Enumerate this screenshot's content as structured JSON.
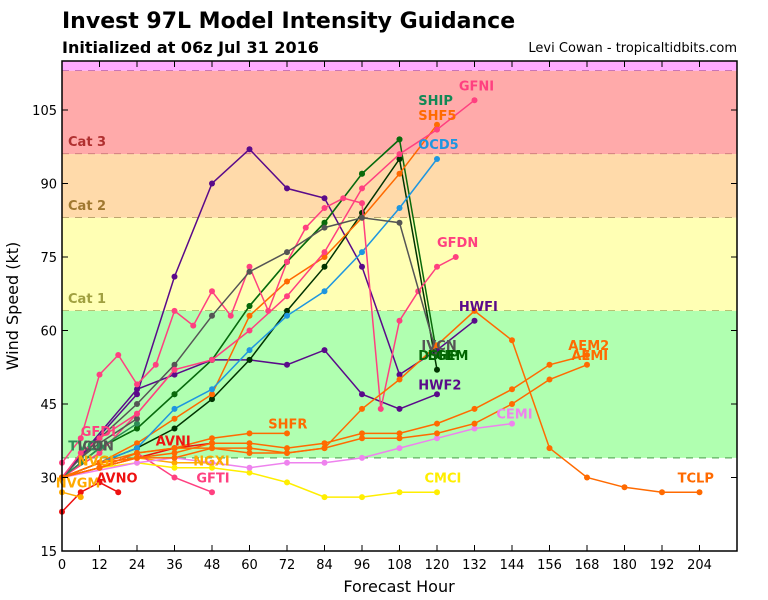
{
  "header": {
    "title": "Invest 97L Model Intensity Guidance",
    "subtitle": "Initialized at 06z Jul 31 2016",
    "credit": "Levi Cowan - tropicaltidbits.com"
  },
  "chart_data": {
    "type": "line",
    "title": "Invest 97L Model Intensity Guidance",
    "subtitle": "Initialized at 06z Jul 31 2016",
    "xlabel": "Forecast Hour",
    "ylabel": "Wind Speed (kt)",
    "xlim": [
      0,
      216
    ],
    "ylim": [
      15,
      115
    ],
    "xticks": [
      0,
      12,
      24,
      36,
      48,
      60,
      72,
      84,
      96,
      108,
      120,
      132,
      144,
      156,
      168,
      180,
      192,
      204
    ],
    "yticks": [
      15,
      30,
      45,
      60,
      75,
      90,
      105
    ],
    "grid": false,
    "bands": [
      {
        "name": "Cat 4",
        "from": 113,
        "to": 115,
        "color": "#ffaaff",
        "line_color": "#b05ab0"
      },
      {
        "name": "Cat 3",
        "from": 96,
        "to": 113,
        "color": "#ffaaaa",
        "label": "Cat 3",
        "label_color": "#b03030",
        "line_color": "#b06060"
      },
      {
        "name": "Cat 2",
        "from": 83,
        "to": 96,
        "color": "#ffdaaa",
        "label": "Cat 2",
        "label_color": "#a07830",
        "line_color": "#a08050"
      },
      {
        "name": "Cat 1",
        "from": 64,
        "to": 83,
        "color": "#ffffb4",
        "label": "Cat 1",
        "label_color": "#a0a040",
        "line_color": "#a0a050"
      },
      {
        "name": "TS",
        "from": 34,
        "to": 64,
        "color": "#b0ffb0",
        "line_color": "#60b060"
      }
    ],
    "series": [
      {
        "name": "HWFI",
        "color": "#5a0a8a",
        "x": [
          0,
          24,
          36,
          48,
          60,
          72,
          84,
          96,
          108,
          120,
          132
        ],
        "y": [
          30,
          47,
          71,
          90,
          97,
          89,
          87,
          73,
          51,
          56,
          62
        ]
      },
      {
        "name": "HWF2",
        "color": "#5a0a8a",
        "x": [
          0,
          24,
          36,
          48,
          60,
          72,
          84,
          96,
          108,
          120
        ],
        "y": [
          30,
          48,
          51,
          54,
          54,
          53,
          56,
          47,
          44,
          47
        ]
      },
      {
        "name": "SHIP",
        "color": "#118855",
        "x": [
          0,
          12,
          24,
          36,
          48,
          60,
          72,
          84,
          96,
          108
        ],
        "y": [
          30,
          36,
          40,
          47,
          54,
          65,
          74,
          82,
          92,
          99
        ]
      },
      {
        "name": "DSHP",
        "color": "#0a6a0a",
        "x": [
          0,
          12,
          24,
          36,
          48,
          60,
          72,
          84,
          96,
          108,
          120
        ],
        "y": [
          30,
          36,
          40,
          47,
          54,
          65,
          74,
          82,
          92,
          99,
          55
        ]
      },
      {
        "name": "LGEM",
        "color": "#003300",
        "x": [
          0,
          12,
          24,
          36,
          48,
          60,
          72,
          84,
          96,
          108,
          120
        ],
        "y": [
          30,
          33,
          36,
          40,
          46,
          54,
          64,
          73,
          84,
          95,
          52
        ]
      },
      {
        "name": "SHF5",
        "color": "#ff6a00",
        "x": [
          0,
          12,
          24,
          36,
          48,
          60,
          72,
          84,
          96,
          108,
          120
        ],
        "y": [
          30,
          33,
          37,
          42,
          47,
          63,
          70,
          75,
          83,
          92,
          102
        ]
      },
      {
        "name": "OCD5",
        "color": "#1e96e0",
        "x": [
          0,
          12,
          24,
          36,
          48,
          60,
          72,
          84,
          96,
          108,
          120
        ],
        "y": [
          30,
          33,
          36,
          44,
          48,
          56,
          63,
          68,
          76,
          85,
          95
        ]
      },
      {
        "name": "GFNI",
        "color": "#ff4080",
        "x": [
          0,
          12,
          24,
          36,
          48,
          60,
          72,
          84,
          96,
          108,
          120,
          132
        ],
        "y": [
          30,
          35,
          43,
          52,
          54,
          60,
          67,
          76,
          89,
          96,
          101,
          107
        ]
      },
      {
        "name": "GFDN",
        "color": "#ff4080",
        "x": [
          0,
          6,
          12,
          18,
          24,
          30,
          36,
          42,
          48,
          54,
          60,
          66,
          72,
          78,
          84,
          90,
          96,
          102,
          108,
          114,
          120,
          126
        ],
        "y": [
          33,
          38,
          51,
          55,
          49,
          53,
          64,
          61,
          68,
          63,
          73,
          64,
          74,
          81,
          85,
          87,
          86,
          44,
          62,
          68,
          73,
          75
        ]
      },
      {
        "name": "IVCN",
        "color": "#555555",
        "x": [
          0,
          12,
          24,
          36,
          48,
          60,
          72,
          84,
          96,
          108,
          120
        ],
        "y": [
          30,
          38,
          45,
          53,
          63,
          72,
          76,
          81,
          83,
          82,
          55
        ]
      },
      {
        "name": "TVCN",
        "color": "#2e8b57",
        "x": [
          0,
          6,
          12,
          24
        ],
        "y": [
          30,
          33,
          36,
          41
        ]
      },
      {
        "name": "ICON",
        "color": "#555555",
        "x": [
          0,
          6,
          12,
          24
        ],
        "y": [
          30,
          34,
          37,
          42
        ]
      },
      {
        "name": "GFDI",
        "color": "#ff4080",
        "x": [
          0,
          6,
          12,
          24,
          36
        ],
        "y": [
          30,
          35,
          38,
          43,
          52
        ]
      },
      {
        "name": "AVNO",
        "color": "#ee1111",
        "x": [
          0,
          6,
          12,
          18
        ],
        "y": [
          23,
          27,
          29,
          27
        ]
      },
      {
        "name": "AVNI",
        "color": "#ee1111",
        "x": [
          0,
          12,
          24,
          36,
          48
        ],
        "y": [
          30,
          32,
          34,
          36,
          37
        ]
      },
      {
        "name": "NVGM",
        "color": "#ffaa00",
        "x": [
          0,
          6
        ],
        "y": [
          27,
          26
        ]
      },
      {
        "name": "NVGI",
        "color": "#ffaa00",
        "x": [
          0,
          12,
          24
        ],
        "y": [
          30,
          33,
          34
        ]
      },
      {
        "name": "NGXI",
        "color": "#ffaa00",
        "x": [
          0,
          12,
          24,
          36,
          48
        ],
        "y": [
          30,
          32,
          34,
          33,
          33
        ]
      },
      {
        "name": "GFTI",
        "color": "#ff4080",
        "x": [
          0,
          12,
          24,
          36,
          48
        ],
        "y": [
          30,
          32,
          35,
          30,
          27
        ]
      },
      {
        "name": "SHFR",
        "color": "#ff6a00",
        "x": [
          0,
          12,
          24,
          36,
          48,
          60,
          72
        ],
        "y": [
          30,
          33,
          35,
          36,
          38,
          39,
          39
        ]
      },
      {
        "name": "CMCI",
        "color": "#ffee00",
        "x": [
          0,
          12,
          24,
          36,
          48,
          60,
          72,
          84,
          96,
          108,
          120
        ],
        "y": [
          30,
          32,
          33,
          32,
          32,
          31,
          29,
          26,
          26,
          27,
          27
        ]
      },
      {
        "name": "CEMI",
        "color": "#ee82ee",
        "x": [
          0,
          24,
          36,
          48,
          60,
          72,
          84,
          96,
          108,
          120,
          132,
          144
        ],
        "y": [
          30,
          33,
          34,
          33,
          32,
          33,
          33,
          34,
          36,
          38,
          40,
          41
        ]
      },
      {
        "name": "AEM2",
        "color": "#ff6a00",
        "x": [
          0,
          12,
          24,
          36,
          48,
          60,
          72,
          84,
          96,
          108,
          120,
          132,
          144,
          156,
          168
        ],
        "y": [
          30,
          33,
          34,
          35,
          37,
          37,
          36,
          37,
          39,
          39,
          41,
          44,
          48,
          53,
          55
        ]
      },
      {
        "name": "AEMI",
        "color": "#ff6a00",
        "x": [
          0,
          12,
          24,
          36,
          48,
          60,
          72,
          84,
          96,
          108,
          120,
          132,
          144,
          156,
          168
        ],
        "y": [
          30,
          32,
          34,
          34,
          36,
          36,
          35,
          36,
          38,
          38,
          39,
          41,
          45,
          50,
          53
        ]
      },
      {
        "name": "TCLP",
        "color": "#ff6a00",
        "x": [
          0,
          12,
          24,
          36,
          48,
          60,
          72,
          84,
          96,
          108,
          120,
          132,
          144,
          156,
          168,
          180,
          192,
          204
        ],
        "y": [
          30,
          32,
          35,
          36,
          36,
          35,
          35,
          36,
          44,
          50,
          57,
          64,
          58,
          36,
          30,
          28,
          27,
          27
        ]
      }
    ],
    "labels": [
      {
        "text": "GFNI",
        "x": 127,
        "y": 109,
        "color": "#ff4080"
      },
      {
        "text": "SHIP",
        "x": 114,
        "y": 106,
        "color": "#118855"
      },
      {
        "text": "SHF5",
        "x": 114,
        "y": 103,
        "color": "#ff6a00"
      },
      {
        "text": "OCD5",
        "x": 114,
        "y": 97,
        "color": "#1e96e0"
      },
      {
        "text": "GFDN",
        "x": 120,
        "y": 77,
        "color": "#ff4080"
      },
      {
        "text": "HWFI",
        "x": 127,
        "y": 64,
        "color": "#5a0a8a"
      },
      {
        "text": "IVCN",
        "x": 115,
        "y": 56,
        "color": "#555555"
      },
      {
        "text": "DSHP",
        "x": 114,
        "y": 54,
        "color": "#0a6a0a"
      },
      {
        "text": "LGEM",
        "x": 117,
        "y": 54,
        "color": "#006400"
      },
      {
        "text": "HWF2",
        "x": 114,
        "y": 48,
        "color": "#5a0a8a"
      },
      {
        "text": "AEM2",
        "x": 162,
        "y": 56,
        "color": "#ff6a00"
      },
      {
        "text": "AEMI",
        "x": 163,
        "y": 54,
        "color": "#ff6a00"
      },
      {
        "text": "CEMI",
        "x": 139,
        "y": 42,
        "color": "#ee82ee"
      },
      {
        "text": "SHFR",
        "x": 66,
        "y": 40,
        "color": "#ff6a00"
      },
      {
        "text": "GFDI",
        "x": 6,
        "y": 38.5,
        "color": "#ff4080"
      },
      {
        "text": "TVCN",
        "x": 2,
        "y": 35.5,
        "color": "#2e8b57"
      },
      {
        "text": "ICON",
        "x": 5,
        "y": 35.5,
        "color": "#555555"
      },
      {
        "text": "AVNI",
        "x": 30,
        "y": 36.5,
        "color": "#ee1111"
      },
      {
        "text": "NVGI",
        "x": 5,
        "y": 32.5,
        "color": "#ffaa00"
      },
      {
        "text": "NGXI",
        "x": 42,
        "y": 32.5,
        "color": "#ffaa00"
      },
      {
        "text": "NVGM",
        "x": -2,
        "y": 28,
        "color": "#ffaa00"
      },
      {
        "text": "AVNO",
        "x": 11,
        "y": 29,
        "color": "#ee1111"
      },
      {
        "text": "GFTI",
        "x": 43,
        "y": 29,
        "color": "#ff4080"
      },
      {
        "text": "CMCI",
        "x": 116,
        "y": 29,
        "color": "#ffee00"
      },
      {
        "text": "TCLP",
        "x": 197,
        "y": 29,
        "color": "#ff6a00"
      }
    ]
  }
}
